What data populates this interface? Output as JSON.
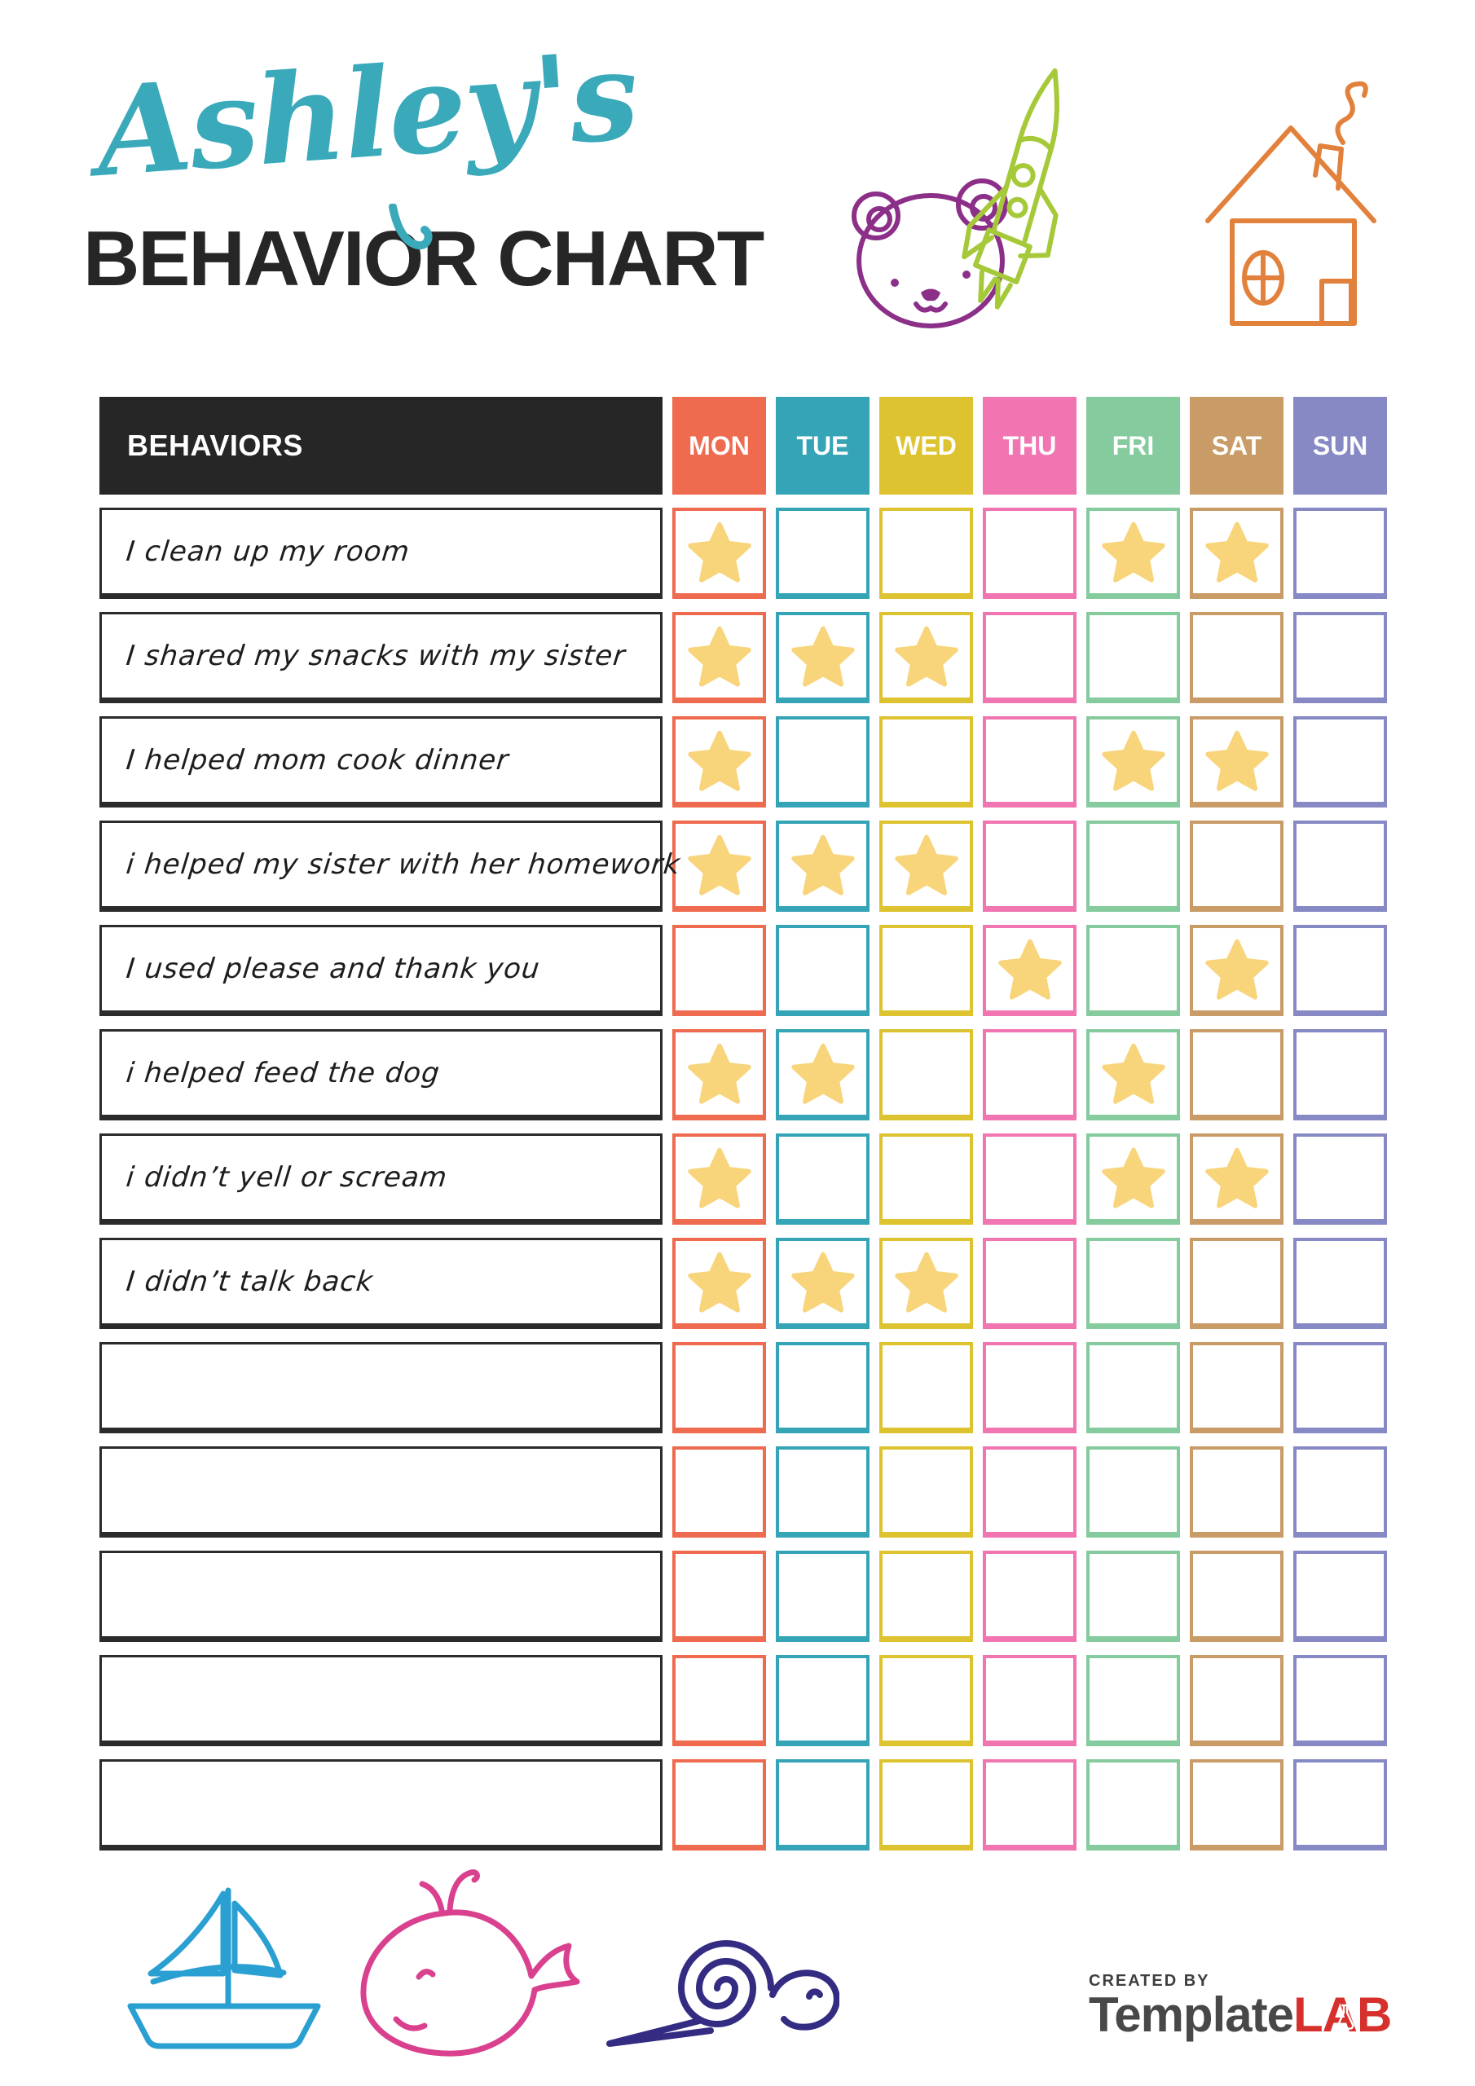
{
  "title": {
    "script": "Ashley's",
    "main": "BEHAVIOR CHART",
    "script_color": "#3aa9ba",
    "main_color": "#262626"
  },
  "decorations": {
    "top": [
      {
        "name": "bear",
        "color": "#8b2f88"
      },
      {
        "name": "rocket",
        "color": "#a5c938"
      },
      {
        "name": "house",
        "color": "#e2813b"
      }
    ],
    "bottom": [
      {
        "name": "sailboat",
        "color": "#2a9fd2"
      },
      {
        "name": "whale",
        "color": "#d9418f"
      },
      {
        "name": "snail",
        "color": "#342c82"
      }
    ]
  },
  "table": {
    "behaviors_header": "BEHAVIORS",
    "header_bg": "#262626",
    "star_color": "#f8d47a",
    "days": [
      {
        "label": "MON",
        "color": "#ee6b4f"
      },
      {
        "label": "TUE",
        "color": "#35a4b7"
      },
      {
        "label": "WED",
        "color": "#ddc32f"
      },
      {
        "label": "THU",
        "color": "#f075b0"
      },
      {
        "label": "FRI",
        "color": "#85cb9d"
      },
      {
        "label": "SAT",
        "color": "#c89b67"
      },
      {
        "label": "SUN",
        "color": "#8689c4"
      }
    ],
    "rows": [
      {
        "label": "I clean up my room",
        "stars": [
          "MON",
          "FRI",
          "SAT"
        ]
      },
      {
        "label": "I shared my snacks with my sister",
        "stars": [
          "MON",
          "TUE",
          "WED"
        ]
      },
      {
        "label": "I helped mom cook dinner",
        "stars": [
          "MON",
          "FRI",
          "SAT"
        ]
      },
      {
        "label": "i helped my sister with her homework",
        "stars": [
          "MON",
          "TUE",
          "WED"
        ]
      },
      {
        "label": "I used please and thank you",
        "stars": [
          "THU",
          "SAT"
        ]
      },
      {
        "label": "i helped feed the dog",
        "stars": [
          "MON",
          "TUE",
          "FRI"
        ]
      },
      {
        "label": "i didn’t yell or scream",
        "stars": [
          "MON",
          "FRI",
          "SAT"
        ]
      },
      {
        "label": "I didn’t talk back",
        "stars": [
          "MON",
          "TUE",
          "WED"
        ]
      },
      {
        "label": "",
        "stars": []
      },
      {
        "label": "",
        "stars": []
      },
      {
        "label": "",
        "stars": []
      },
      {
        "label": "",
        "stars": []
      },
      {
        "label": "",
        "stars": []
      }
    ]
  },
  "footer": {
    "created_by": "CREATED BY",
    "brand_primary": "Template",
    "brand_accent": "LAB",
    "brand_primary_color": "#484848",
    "brand_accent_color": "#d6302c"
  }
}
